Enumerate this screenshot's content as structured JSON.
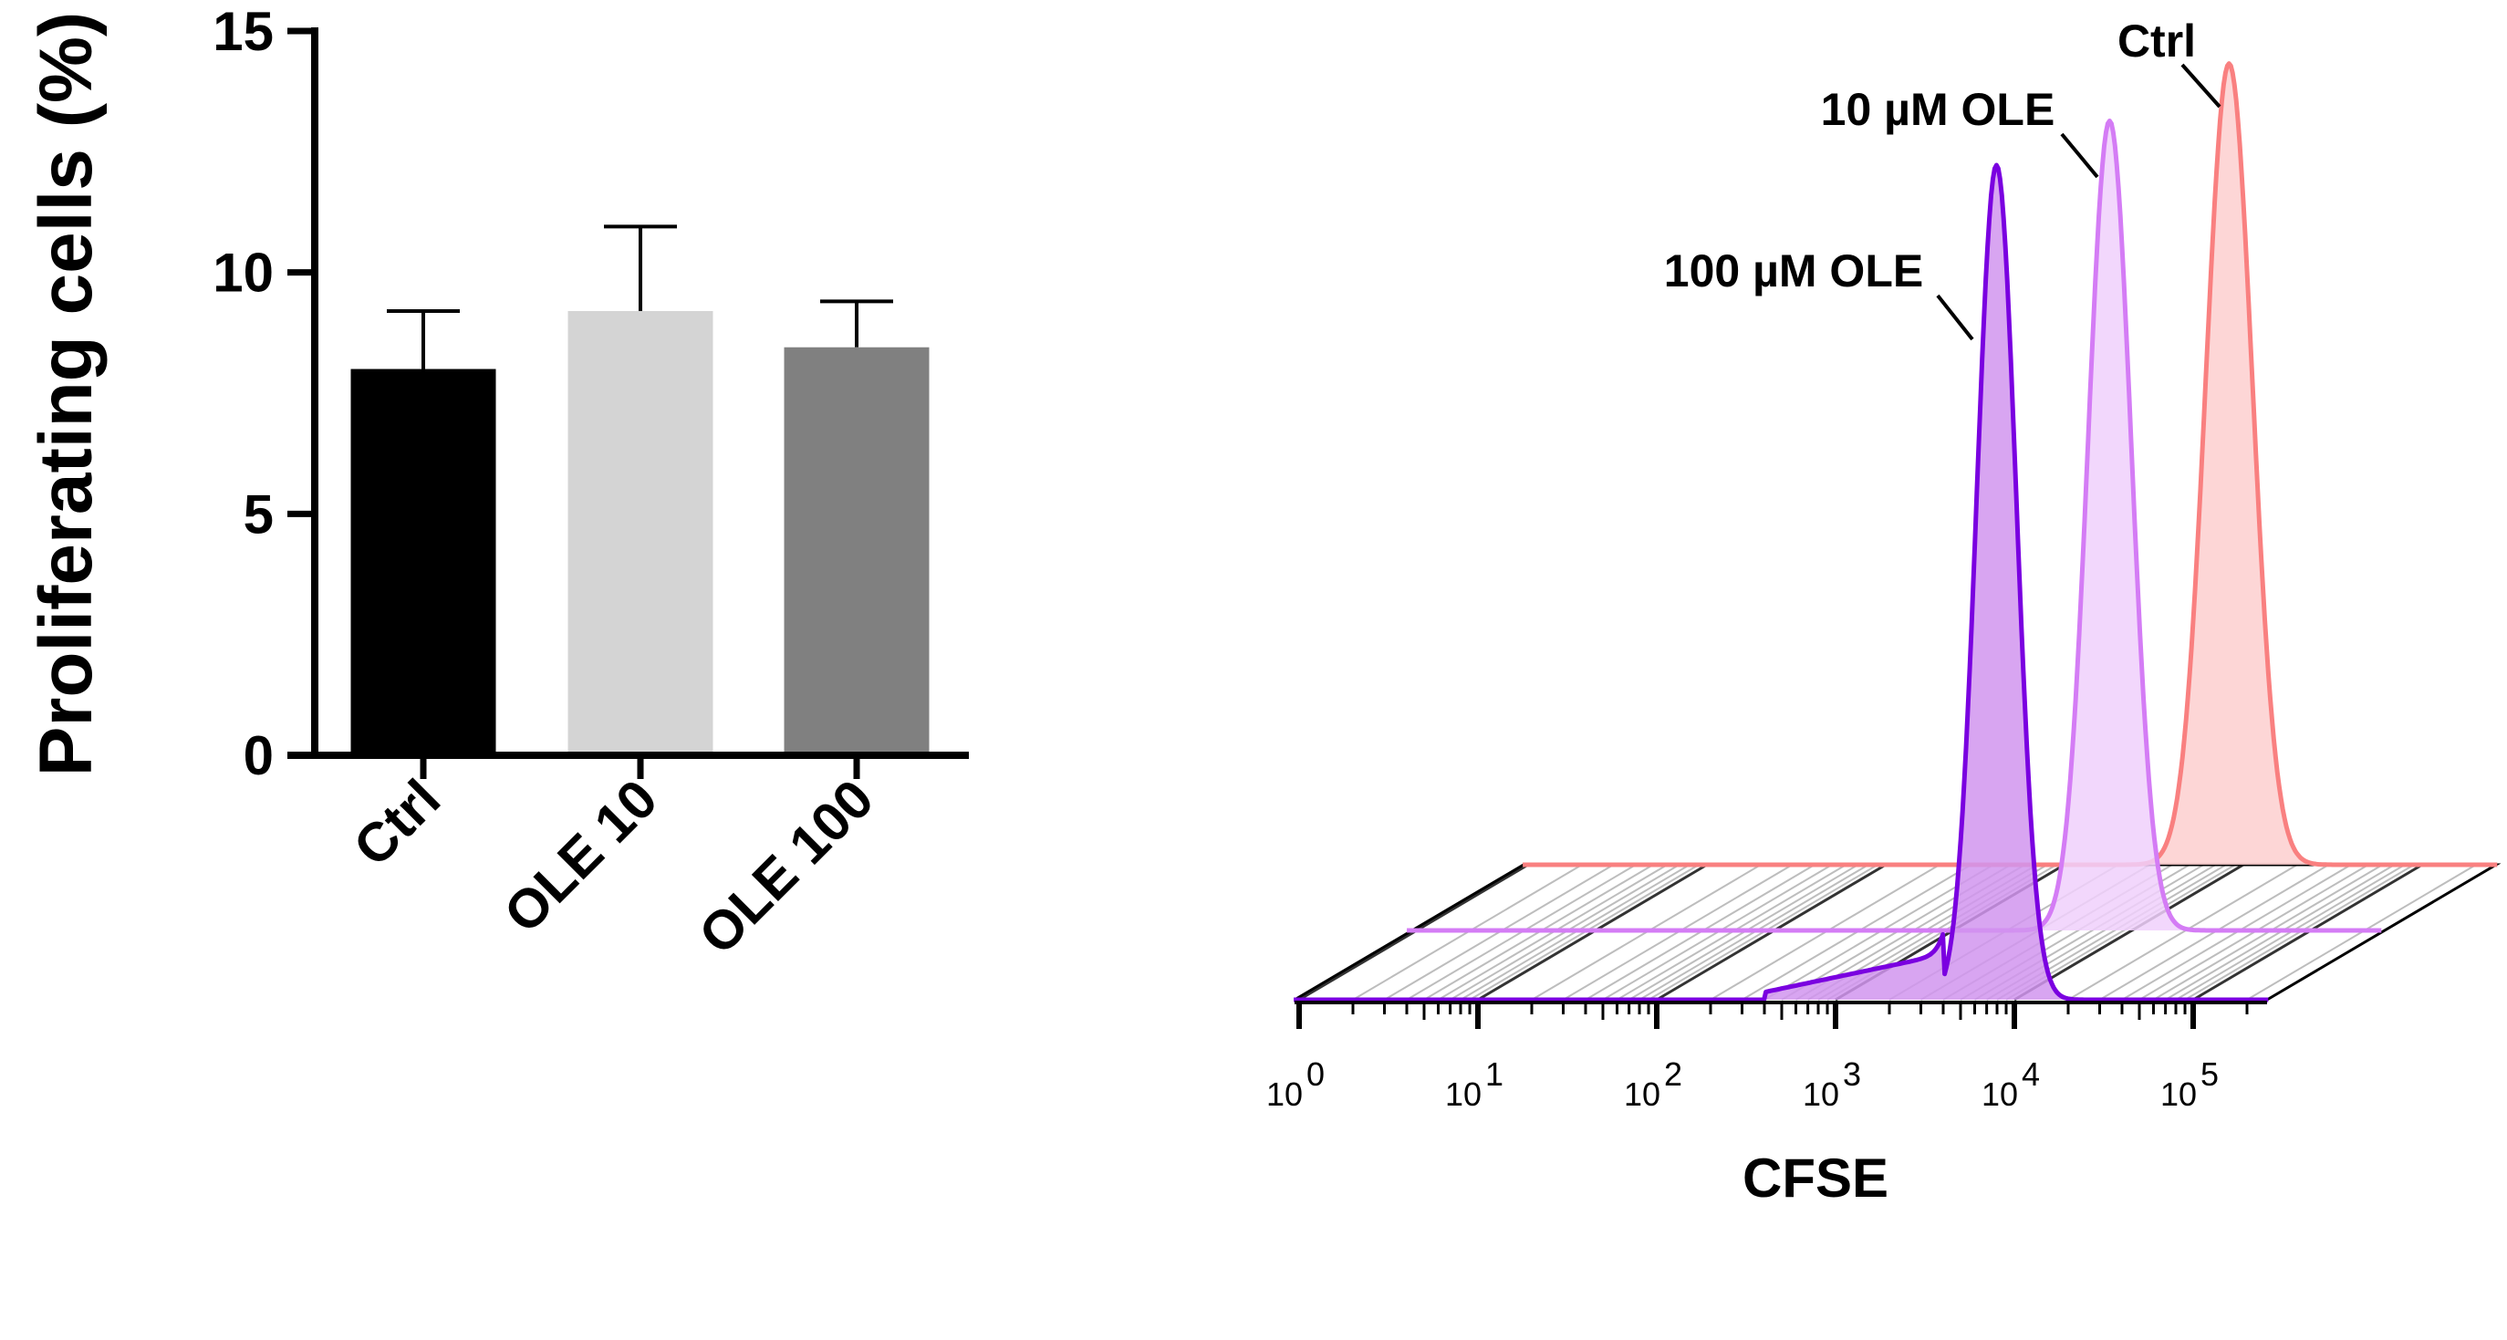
{
  "chart_data": [
    {
      "type": "bar",
      "title": "",
      "xlabel": "",
      "ylabel": "Proliferating cells (%)",
      "ylim": [
        0,
        15
      ],
      "yticks": [
        "0",
        "5",
        "10",
        "15"
      ],
      "categories": [
        "Ctrl",
        "OLE 10",
        "OLE 100"
      ],
      "values": [
        8.0,
        9.2,
        8.45
      ],
      "errors": [
        1.2,
        1.75,
        0.95
      ],
      "colors": [
        "#000000",
        "#d4d4d4",
        "#808080"
      ],
      "grid": false
    },
    {
      "type": "area",
      "title": "",
      "xlabel": "CFSE",
      "xscale": "log10",
      "xlim_log10": [
        0,
        5.4
      ],
      "xtick_base": "10",
      "xtick_exponents": [
        "0",
        "1",
        "2",
        "3",
        "4",
        "5"
      ],
      "grid": false,
      "series": [
        {
          "name": "Ctrl",
          "label": "Ctrl",
          "peak_log10": 3.92,
          "sigma_log10": 0.13,
          "peak_rel": 96,
          "line": "#f98080",
          "fill": "#fdcfcf"
        },
        {
          "name": "10 µM OLE",
          "label": "10 µM OLE",
          "peak_log10": 3.9,
          "sigma_log10": 0.12,
          "peak_rel": 97,
          "line": "#d47cf5",
          "fill": "#f0d0fb"
        },
        {
          "name": "100 µM OLE",
          "label": "100 µM OLE",
          "peak_log10": 3.9,
          "sigma_log10": 0.11,
          "peak_rel": 100,
          "line": "#7a00e0",
          "fill": "#d195ef",
          "tail": {
            "from_log10": 2.6,
            "to_log10": 3.6,
            "level_rel": 3
          }
        }
      ]
    }
  ]
}
